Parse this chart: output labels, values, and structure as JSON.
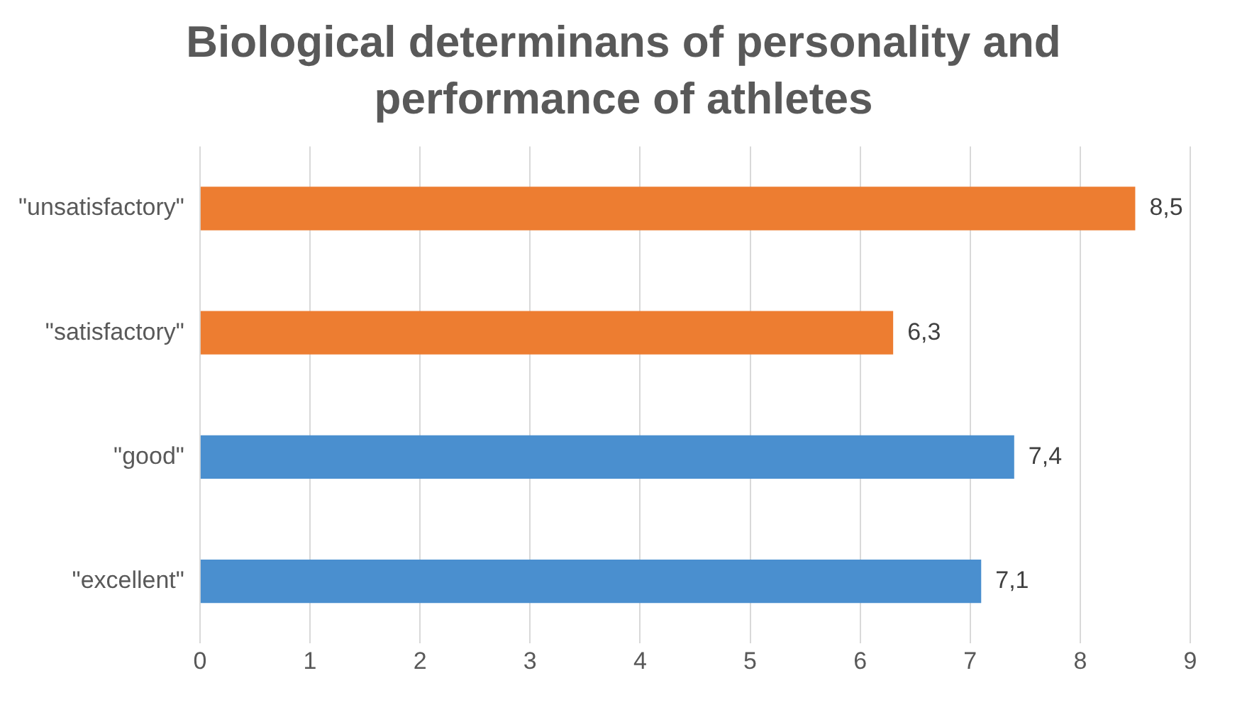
{
  "chart_data": {
    "type": "bar",
    "orientation": "horizontal",
    "title": "Biological determinans of personality and performance of athletes",
    "categories": [
      "\"unsatisfactory\"",
      "\"satisfactory\"",
      "\"good\"",
      "\"excellent\""
    ],
    "values": [
      8.5,
      6.3,
      7.4,
      7.1
    ],
    "value_labels": [
      "8,5",
      "6,3",
      "7,4",
      "7,1"
    ],
    "colors": [
      "#ed7d31",
      "#ed7d31",
      "#4a8fcf",
      "#4a8fcf"
    ],
    "xlim": [
      0,
      9
    ],
    "xticks": [
      0,
      1,
      2,
      3,
      4,
      5,
      6,
      7,
      8,
      9
    ],
    "grid": "x",
    "legend": false
  }
}
